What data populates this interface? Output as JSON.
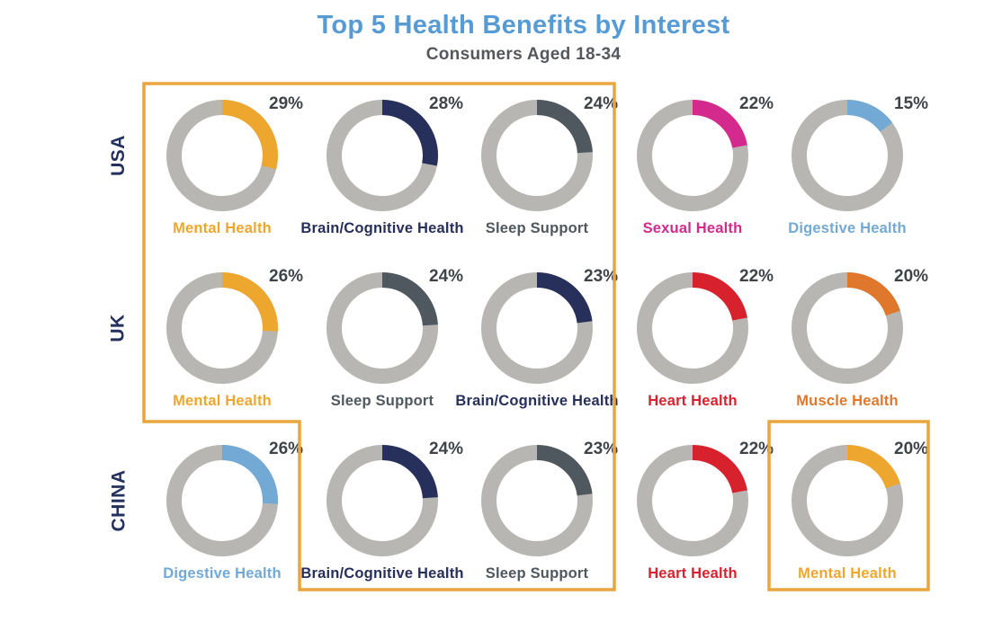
{
  "title": "Top 5 Health Benefits by Interest",
  "subtitle": "Consumers Aged 18-34",
  "colors": {
    "title": "#579BD5",
    "subtitle": "#55575C",
    "ring_gray": "#B7B6B2",
    "pct_text": "#3F4449",
    "row_label": "#24305E",
    "highlight_border": "#E9A63C"
  },
  "chart_data": {
    "type": "donut-grid",
    "unit": "%",
    "title": "Top 5 Health Benefits by Interest",
    "subtitle": "Consumers Aged 18-34",
    "legend_note": "each donut shows % interest; colored arc starts at 12 o'clock clockwise; remainder gray",
    "benefit_colors": {
      "Mental Health": "#EDA72E",
      "Brain/Cognitive Health": "#272F5B",
      "Sleep Support": "#4F585E",
      "Sexual Health": "#D42A8D",
      "Digestive Health": "#72A9D5",
      "Heart Health": "#D7222D",
      "Muscle Health": "#DF782D"
    },
    "rows": [
      {
        "region": "USA",
        "donuts": [
          {
            "label": "Mental Health",
            "value": 29,
            "highlighted": true
          },
          {
            "label": "Brain/Cognitive Health",
            "value": 28,
            "highlighted": true
          },
          {
            "label": "Sleep Support",
            "value": 24,
            "highlighted": true
          },
          {
            "label": "Sexual Health",
            "value": 22,
            "highlighted": false
          },
          {
            "label": "Digestive Health",
            "value": 15,
            "highlighted": false
          }
        ]
      },
      {
        "region": "UK",
        "donuts": [
          {
            "label": "Mental Health",
            "value": 26,
            "highlighted": true
          },
          {
            "label": "Sleep Support",
            "value": 24,
            "highlighted": true
          },
          {
            "label": "Brain/Cognitive Health",
            "value": 23,
            "highlighted": true
          },
          {
            "label": "Heart Health",
            "value": 22,
            "highlighted": false
          },
          {
            "label": "Muscle Health",
            "value": 20,
            "highlighted": false
          }
        ]
      },
      {
        "region": "CHINA",
        "donuts": [
          {
            "label": "Digestive Health",
            "value": 26,
            "highlighted": false
          },
          {
            "label": "Brain/Cognitive Health",
            "value": 24,
            "highlighted": true
          },
          {
            "label": "Sleep Support",
            "value": 23,
            "highlighted": true
          },
          {
            "label": "Heart Health",
            "value": 22,
            "highlighted": false
          },
          {
            "label": "Mental Health",
            "value": 20,
            "highlighted": true
          }
        ]
      }
    ]
  }
}
